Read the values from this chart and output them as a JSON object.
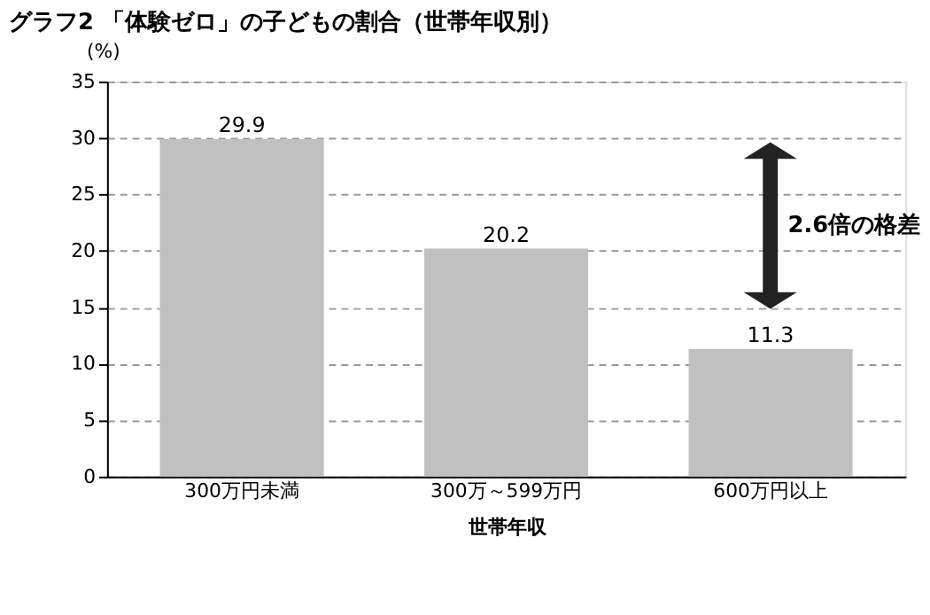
{
  "chart_data": {
    "type": "bar",
    "title": "グラフ2 「体験ゼロ」の子どもの割合（世帯年収別）",
    "categories": [
      "300万円未満",
      "300万～599万円",
      "600万円以上"
    ],
    "values": [
      29.9,
      20.2,
      11.3
    ],
    "color": "#c0c0c0",
    "xlabel": "世帯年収",
    "ylabel": "(%)",
    "ylim": [
      0,
      35
    ],
    "yticks": [
      0,
      5,
      10,
      15,
      20,
      25,
      30,
      35
    ],
    "grid": "y",
    "data_labels": true,
    "legend": false,
    "annotations": [
      "2.6倍の格差"
    ]
  }
}
